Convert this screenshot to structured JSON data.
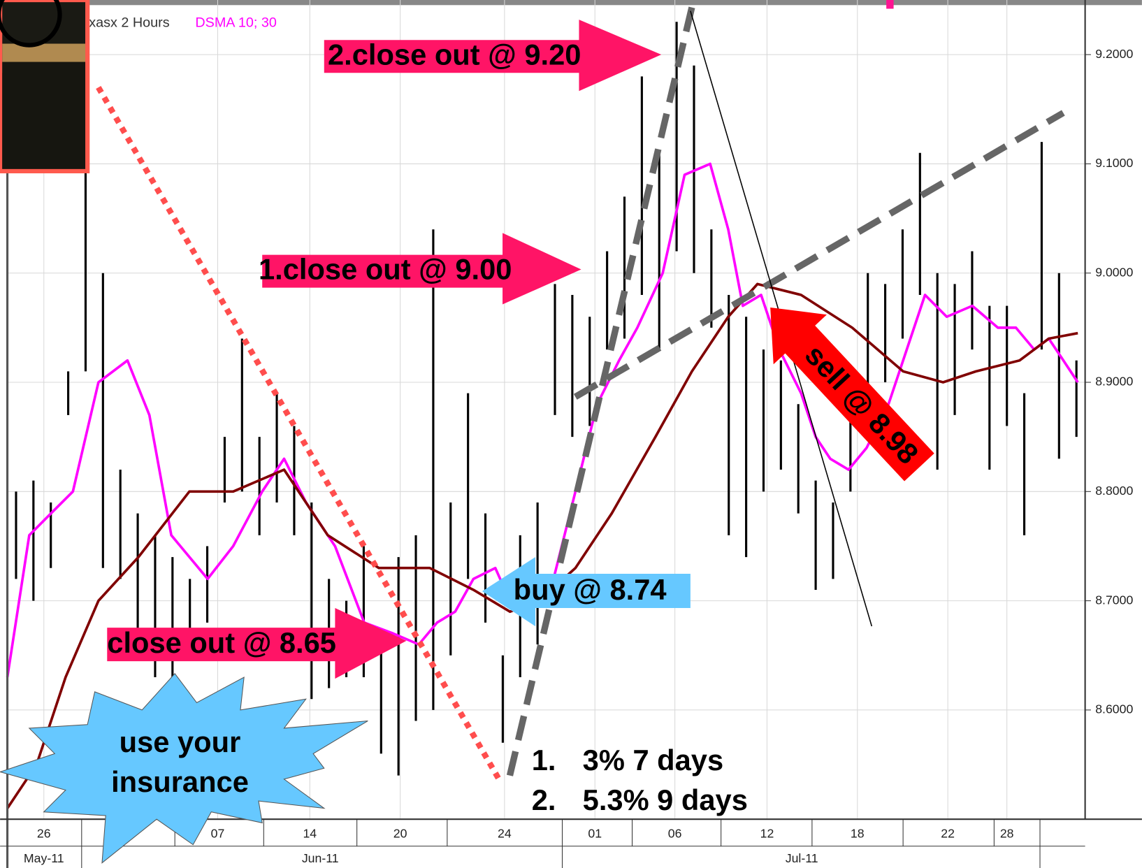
{
  "chart_data": {
    "type": "range",
    "title": "xasx 2 Hours",
    "subtitle": "DSMA 10; 30",
    "xlim": [
      0,
      62
    ],
    "ylim": [
      8.5,
      9.25
    ],
    "yticks": [
      {
        "value": 8.6,
        "label": "8.6000"
      },
      {
        "value": 8.7,
        "label": "8.7000"
      },
      {
        "value": 8.8,
        "label": "8.8000"
      },
      {
        "value": 8.9,
        "label": "8.9000"
      },
      {
        "value": 9.0,
        "label": "9.0000"
      },
      {
        "value": 9.1,
        "label": "9.1000"
      },
      {
        "value": 9.2,
        "label": "9.2000"
      }
    ],
    "xticks": [
      {
        "value": 2.1,
        "label": "26"
      },
      {
        "value": 12.1,
        "label": "07"
      },
      {
        "value": 17.4,
        "label": "14"
      },
      {
        "value": 22.6,
        "label": "20"
      },
      {
        "value": 28.6,
        "label": "24"
      },
      {
        "value": 33.8,
        "label": "01"
      },
      {
        "value": 38.4,
        "label": "06"
      },
      {
        "value": 43.7,
        "label": "12"
      },
      {
        "value": 48.9,
        "label": "18"
      },
      {
        "value": 54.1,
        "label": "22"
      },
      {
        "value": 57.5,
        "label": "28"
      }
    ],
    "month_labels": [
      {
        "value": 2.1,
        "label": "May-11"
      },
      {
        "value": 18,
        "label": "Jun-11"
      },
      {
        "value": 45.7,
        "label": "Jul-11"
      }
    ],
    "grid": true,
    "bar_color": "#000000",
    "x": [
      0.5,
      1.5,
      2.5,
      3.5,
      4.5,
      5.5,
      6.5,
      7.5,
      8.5,
      9.5,
      10.5,
      11.5,
      12.5,
      13.5,
      14.5,
      15.5,
      16.5,
      17.5,
      18.5,
      19.5,
      20.5,
      21.5,
      22.5,
      23.5,
      24.5,
      25.5,
      26.5,
      27.5,
      28.5,
      29.5,
      30.5,
      31.5,
      32.5,
      33.5,
      34.5,
      35.5,
      36.5,
      37.5,
      38.5,
      39.5,
      40.5,
      41.5,
      42.5,
      43.5,
      44.5,
      45.5,
      46.5,
      47.5,
      48.5,
      49.5,
      50.5,
      51.5,
      52.5,
      53.5,
      54.5,
      55.5,
      56.5,
      57.5,
      58.5,
      59.5,
      60.5,
      61.5
    ],
    "high": [
      8.8,
      8.81,
      8.79,
      8.91,
      9.15,
      9.0,
      8.82,
      8.78,
      8.76,
      8.74,
      8.72,
      8.75,
      8.85,
      8.94,
      8.85,
      8.89,
      8.86,
      8.79,
      8.72,
      8.7,
      8.75,
      8.66,
      8.74,
      8.76,
      9.04,
      8.79,
      8.89,
      8.78,
      8.65,
      8.76,
      8.79,
      8.99,
      8.98,
      8.96,
      9.02,
      9.07,
      9.18,
      9.11,
      9.23,
      9.19,
      9.04,
      8.98,
      8.96,
      8.93,
      8.92,
      8.88,
      8.81,
      8.79,
      8.91,
      9.0,
      8.99,
      9.04,
      9.11,
      9.0,
      8.99,
      9.02,
      8.97,
      8.97,
      8.89,
      9.12,
      9.0,
      8.92
    ],
    "low": [
      8.72,
      8.7,
      8.73,
      8.87,
      8.91,
      8.73,
      8.72,
      8.67,
      8.63,
      8.63,
      8.66,
      8.68,
      8.79,
      8.8,
      8.76,
      8.79,
      8.76,
      8.61,
      8.62,
      8.63,
      8.63,
      8.56,
      8.54,
      8.59,
      8.6,
      8.65,
      8.72,
      8.68,
      8.57,
      8.63,
      8.66,
      8.87,
      8.85,
      8.86,
      8.93,
      8.94,
      8.98,
      8.93,
      9.02,
      9.0,
      8.95,
      8.76,
      8.74,
      8.8,
      8.82,
      8.78,
      8.71,
      8.72,
      8.8,
      8.89,
      8.9,
      8.94,
      8.98,
      8.82,
      8.87,
      8.93,
      8.82,
      8.86,
      8.76,
      8.93,
      8.83,
      8.85
    ],
    "series": [
      {
        "name": "DSMA 10",
        "color": "#ff00ff",
        "x": [
          0,
          1.26,
          2.51,
          3.77,
          5.24,
          6.91,
          8.17,
          9.43,
          11.52,
          12.99,
          14.66,
          15.92,
          17.18,
          18.85,
          20.53,
          22.2,
          23.67,
          24.72,
          25.76,
          26.81,
          28.07,
          28.91,
          30.16,
          31.42,
          32.68,
          33.93,
          35.19,
          36.24,
          37.7,
          38.96,
          40.43,
          41.47,
          42.31,
          43.36,
          44.41,
          45.66,
          46.5,
          47.34,
          48.39,
          49.43,
          50.69,
          51.74,
          52.79,
          54.04,
          55.51,
          56.98,
          58.02,
          59.07,
          59.91,
          60.75,
          61.58
        ],
        "values": [
          8.63,
          8.76,
          8.78,
          8.8,
          8.9,
          8.92,
          8.87,
          8.76,
          8.72,
          8.75,
          8.8,
          8.83,
          8.79,
          8.75,
          8.68,
          8.67,
          8.66,
          8.68,
          8.69,
          8.72,
          8.73,
          8.7,
          8.7,
          8.72,
          8.8,
          8.88,
          8.92,
          8.95,
          9.0,
          9.09,
          9.1,
          9.04,
          8.97,
          8.98,
          8.93,
          8.89,
          8.85,
          8.83,
          8.82,
          8.84,
          8.88,
          8.93,
          8.98,
          8.96,
          8.97,
          8.95,
          8.95,
          8.93,
          8.94,
          8.92,
          8.9
        ]
      },
      {
        "name": "DSMA 30",
        "color": "#800000",
        "x": [
          0,
          1.68,
          3.35,
          5.24,
          7.54,
          10.47,
          12.99,
          15.92,
          18.43,
          21.37,
          24.3,
          26.81,
          28.91,
          30.58,
          32.68,
          34.77,
          37.28,
          39.38,
          41.47,
          43.15,
          45.66,
          48.6,
          51.53,
          53.83,
          55.72,
          58.23,
          59.91,
          61.58
        ],
        "values": [
          8.51,
          8.55,
          8.63,
          8.7,
          8.74,
          8.8,
          8.8,
          8.82,
          8.76,
          8.73,
          8.73,
          8.71,
          8.69,
          8.7,
          8.73,
          8.78,
          8.85,
          8.91,
          8.96,
          8.99,
          8.98,
          8.95,
          8.91,
          8.9,
          8.91,
          8.92,
          8.94,
          8.945
        ]
      }
    ],
    "annotations": [
      "2.close out @ 9.20",
      "1.close out @ 9.00",
      "close out @ 8.65",
      "buy @ 8.74",
      "sell @ 8.98"
    ],
    "callout": [
      "use your",
      "insurance"
    ],
    "notes": [
      {
        "number": "1.",
        "text": "3% 7 days"
      },
      {
        "number": "2.",
        "text": "5.3% 9 days"
      }
    ]
  }
}
